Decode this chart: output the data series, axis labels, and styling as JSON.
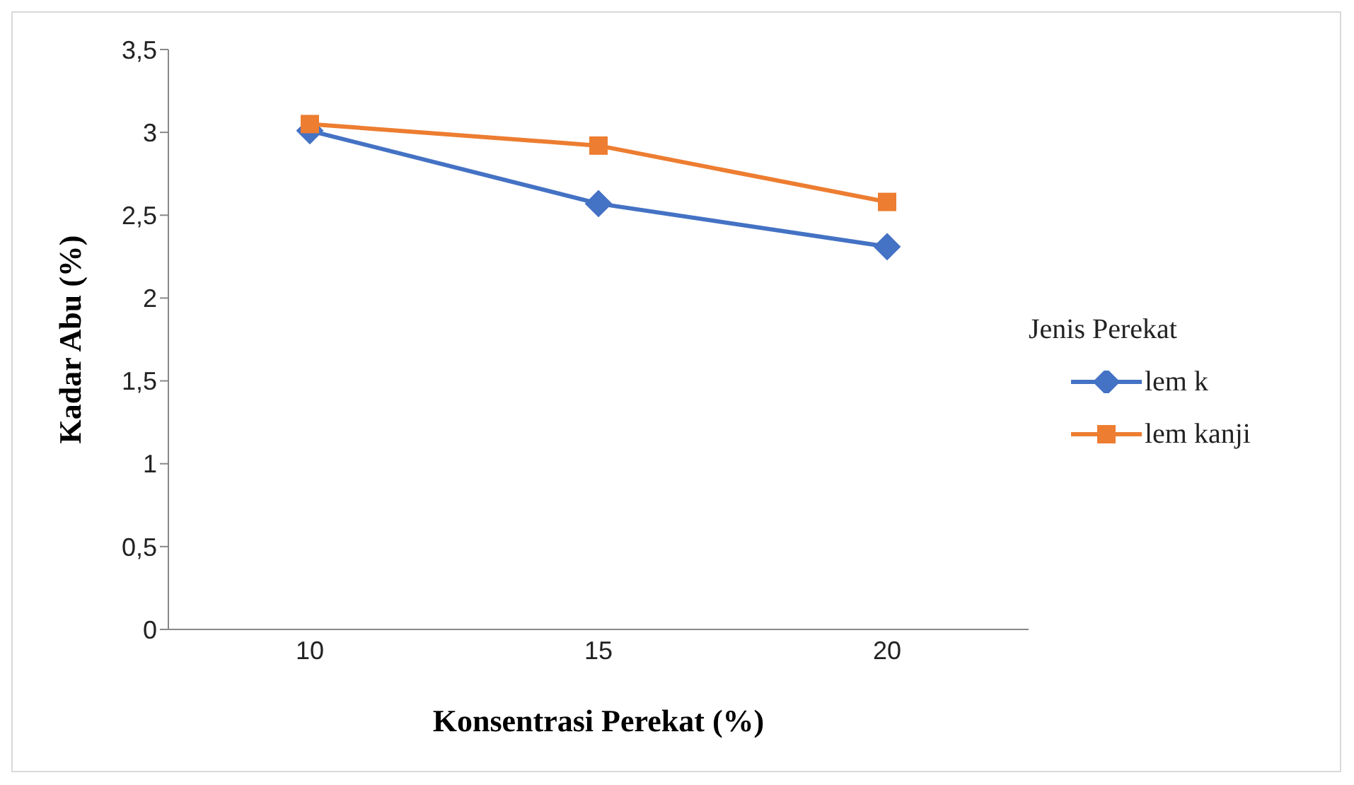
{
  "chart_data": {
    "type": "line",
    "xlabel": "Konsentrasi Perekat (%)",
    "ylabel": "Kadar Abu (%)",
    "legend_title": "Jenis Perekat",
    "categories": [
      "10",
      "15",
      "20"
    ],
    "series": [
      {
        "name": "lem k",
        "color": "#4472c4",
        "marker": "diamond",
        "values": [
          3.01,
          2.57,
          2.31
        ]
      },
      {
        "name": "lem kanji",
        "color": "#ed7d31",
        "marker": "square",
        "values": [
          3.05,
          2.92,
          2.58
        ]
      }
    ],
    "ylim": [
      0,
      3.5
    ],
    "yticks": [
      {
        "value": 0,
        "label": "0"
      },
      {
        "value": 0.5,
        "label": "0,5"
      },
      {
        "value": 1,
        "label": "1"
      },
      {
        "value": 1.5,
        "label": "1,5"
      },
      {
        "value": 2,
        "label": "2"
      },
      {
        "value": 2.5,
        "label": "2,5"
      },
      {
        "value": 3,
        "label": "3"
      },
      {
        "value": 3.5,
        "label": "3,5"
      }
    ],
    "grid": false,
    "legend": "right",
    "line_style": "solid"
  }
}
